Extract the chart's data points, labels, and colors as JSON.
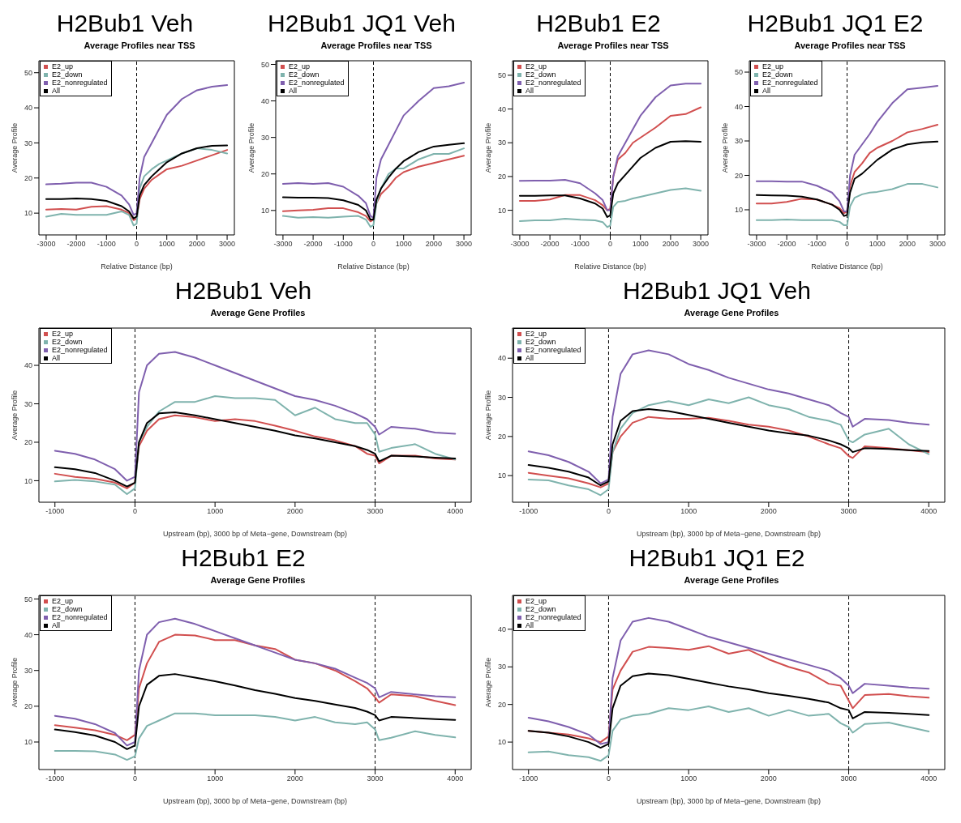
{
  "chart_data": [
    {
      "type": "line",
      "title": "H2Bub1 Veh",
      "subtitle": "Average Profiles near TSS",
      "xlabel": "Relative Distance (bp)",
      "ylabel": "Average Profile",
      "xlim": [
        -3240,
        3240
      ],
      "xticks": [
        -3000,
        -2000,
        -1000,
        0,
        1000,
        2000,
        3000
      ],
      "ylim": [
        3.8,
        53.4
      ],
      "yticks": [
        10,
        20,
        30,
        40,
        50
      ],
      "legend": "top left",
      "ref_lines": [
        {
          "axis": "x",
          "value": 0,
          "color": "#000000",
          "line_style": "dashed"
        }
      ],
      "x": [
        -3000,
        -2500,
        -2000,
        -1500,
        -1000,
        -500,
        -250,
        -100,
        0,
        100,
        250,
        500,
        750,
        1000,
        1500,
        2000,
        2500,
        3000
      ],
      "series": [
        {
          "name": "E2_up",
          "color": "#d14f4f",
          "values": [
            11,
            11.2,
            11,
            11.8,
            12,
            11,
            10,
            8,
            8.5,
            14,
            17,
            19.5,
            21,
            22.5,
            23.5,
            25,
            26.5,
            28
          ]
        },
        {
          "name": "E2_down",
          "color": "#7fb3ad",
          "values": [
            9,
            9.8,
            9.5,
            9.5,
            9.5,
            10.5,
            9.5,
            6.5,
            7,
            17,
            20.5,
            22.5,
            24,
            25,
            27,
            28.5,
            28,
            27
          ]
        },
        {
          "name": "E2_nonregulated",
          "color": "#7f5fae",
          "values": [
            18.2,
            18.4,
            18.7,
            18.7,
            17.5,
            15,
            12.5,
            9.5,
            10,
            20,
            26,
            30,
            34,
            38,
            42.5,
            45,
            46,
            46.5
          ]
        },
        {
          "name": "All",
          "color": "#000000",
          "values": [
            14,
            14,
            14.2,
            14,
            13.5,
            12,
            10.5,
            8.5,
            9,
            15,
            18,
            20.5,
            22.5,
            24.5,
            27,
            28.5,
            29.2,
            29.3
          ]
        }
      ]
    },
    {
      "type": "line",
      "title": "H2Bub1 JQ1 Veh",
      "subtitle": "Average Profiles near TSS",
      "xlabel": "Relative Distance (bp)",
      "ylabel": "Average Profile",
      "xlim": [
        -3240,
        3240
      ],
      "xticks": [
        -3000,
        -2000,
        -1000,
        0,
        1000,
        2000,
        3000
      ],
      "ylim": [
        3.3,
        51
      ],
      "yticks": [
        10,
        20,
        30,
        40,
        50
      ],
      "legend": "top left",
      "ref_lines": [
        {
          "axis": "x",
          "value": 0,
          "color": "#000000",
          "line_style": "dashed"
        }
      ],
      "x": [
        -3000,
        -2500,
        -2000,
        -1500,
        -1000,
        -500,
        -250,
        -100,
        0,
        100,
        250,
        500,
        750,
        1000,
        1500,
        2000,
        2500,
        3000
      ],
      "series": [
        {
          "name": "E2_up",
          "color": "#d14f4f",
          "values": [
            9.8,
            10,
            10.2,
            10.6,
            10.6,
            9.5,
            8.5,
            7,
            7.5,
            12,
            14.5,
            16.5,
            19,
            20.5,
            22,
            23,
            24,
            25
          ]
        },
        {
          "name": "E2_down",
          "color": "#7fb3ad",
          "values": [
            8.5,
            8,
            8.2,
            8,
            8.3,
            8.5,
            7.5,
            5.5,
            6,
            12,
            16,
            20,
            21.5,
            21.5,
            24,
            25.5,
            25.5,
            27
          ]
        },
        {
          "name": "E2_nonregulated",
          "color": "#7f5fae",
          "values": [
            17.3,
            17.5,
            17.3,
            17.5,
            16.5,
            14,
            12,
            8.5,
            8,
            19,
            24,
            28,
            32,
            36,
            40,
            43.5,
            44,
            45
          ]
        },
        {
          "name": "All",
          "color": "#000000",
          "values": [
            13.6,
            13.5,
            13.5,
            13.4,
            12.8,
            11.5,
            10,
            7.5,
            7.5,
            13,
            16,
            19,
            21.5,
            23.5,
            26,
            27.5,
            28,
            28.4
          ]
        }
      ]
    },
    {
      "type": "line",
      "title": "H2Bub1 E2",
      "subtitle": "Average Profiles near TSS",
      "xlabel": "Relative Distance (bp)",
      "ylabel": "Average Profile",
      "xlim": [
        -3240,
        3240
      ],
      "xticks": [
        -3000,
        -2000,
        -1000,
        0,
        1000,
        2000,
        3000
      ],
      "ylim": [
        2.7,
        54.3
      ],
      "yticks": [
        10,
        20,
        30,
        40,
        50
      ],
      "legend": "top left",
      "ref_lines": [
        {
          "axis": "x",
          "value": 0,
          "color": "#000000",
          "line_style": "dashed"
        }
      ],
      "x": [
        -3000,
        -2500,
        -2000,
        -1500,
        -1000,
        -500,
        -250,
        -100,
        0,
        100,
        250,
        500,
        750,
        1000,
        1500,
        2000,
        2500,
        3000
      ],
      "series": [
        {
          "name": "E2_up",
          "color": "#d14f4f",
          "values": [
            12.8,
            12.8,
            13.2,
            14.5,
            14.5,
            13,
            11.5,
            10,
            10.5,
            20,
            25,
            27,
            30,
            31.5,
            34.5,
            38,
            38.5,
            40.5
          ]
        },
        {
          "name": "E2_down",
          "color": "#7fb3ad",
          "values": [
            6.8,
            7,
            7,
            7.5,
            7.2,
            7,
            6.5,
            5,
            5.5,
            11,
            12.5,
            12.8,
            13.5,
            14,
            15,
            16,
            16.5,
            15.8
          ]
        },
        {
          "name": "E2_nonregulated",
          "color": "#7f5fae",
          "values": [
            18.7,
            18.8,
            18.8,
            19,
            18,
            15,
            13,
            10,
            10,
            20,
            26,
            30,
            34,
            38,
            43.5,
            47,
            47.5,
            47.5
          ]
        },
        {
          "name": "All",
          "color": "#000000",
          "values": [
            14.3,
            14.3,
            14.4,
            14.4,
            13.5,
            12,
            10.5,
            8,
            8.5,
            15,
            18,
            20.5,
            23,
            25.5,
            28.5,
            30.3,
            30.5,
            30.3
          ]
        }
      ]
    },
    {
      "type": "line",
      "title": "H2Bub1 JQ1 E2",
      "subtitle": "Average Profiles near TSS",
      "xlabel": "Relative Distance (bp)",
      "ylabel": "Average Profile",
      "xlim": [
        -3240,
        3240
      ],
      "xticks": [
        -3000,
        -2000,
        -1000,
        0,
        1000,
        2000,
        3000
      ],
      "ylim": [
        2.7,
        53.3
      ],
      "yticks": [
        10,
        20,
        30,
        40,
        50
      ],
      "legend": "top left",
      "ref_lines": [
        {
          "axis": "x",
          "value": 0,
          "color": "#000000",
          "line_style": "dashed"
        }
      ],
      "x": [
        -3000,
        -2500,
        -2000,
        -1500,
        -1000,
        -500,
        -250,
        -100,
        0,
        100,
        250,
        500,
        750,
        1000,
        1500,
        2000,
        2500,
        3000
      ],
      "series": [
        {
          "name": "E2_up",
          "color": "#d14f4f",
          "values": [
            11.8,
            11.8,
            12.3,
            13.2,
            13,
            11.5,
            10.5,
            9,
            9.5,
            17,
            21,
            23.5,
            26.5,
            28,
            30,
            32.5,
            33.5,
            34.7
          ]
        },
        {
          "name": "E2_down",
          "color": "#7fb3ad",
          "values": [
            7,
            7,
            7.2,
            7,
            7,
            7,
            6.5,
            5.5,
            5.5,
            11,
            13.5,
            14.5,
            15,
            15.2,
            16,
            17.5,
            17.5,
            16.5
          ]
        },
        {
          "name": "E2_nonregulated",
          "color": "#7f5fae",
          "values": [
            18.3,
            18.3,
            18.2,
            18.2,
            17,
            15,
            12.5,
            9.5,
            9.5,
            20,
            26,
            29,
            32,
            35.5,
            41,
            45,
            45.5,
            46
          ]
        },
        {
          "name": "All",
          "color": "#000000",
          "values": [
            14.3,
            14.2,
            14.1,
            13.8,
            13,
            11.5,
            10,
            8.2,
            8.5,
            15,
            19,
            20.5,
            22.5,
            24.5,
            27.5,
            29,
            29.6,
            29.8
          ]
        }
      ]
    },
    {
      "type": "line",
      "title": "H2Bub1 Veh",
      "subtitle": "Average Gene Profiles",
      "xlabel": "Upstream (bp), 3000 bp of Meta−gene, Downstream (bp)",
      "ylabel": "Average Profile",
      "xlim": [
        -1200,
        4200
      ],
      "xticks": [
        -1000,
        0,
        1000,
        2000,
        3000,
        4000
      ],
      "ylim": [
        4.4,
        49.7
      ],
      "yticks": [
        10,
        20,
        30,
        40
      ],
      "legend": "top left",
      "ref_lines": [
        {
          "axis": "x",
          "value": 0,
          "color": "#000000",
          "line_style": "dashed"
        },
        {
          "axis": "x",
          "value": 3000,
          "color": "#000000",
          "line_style": "dashed"
        }
      ],
      "x": [
        -1000,
        -750,
        -500,
        -250,
        -100,
        0,
        50,
        150,
        300,
        500,
        750,
        1000,
        1250,
        1500,
        1750,
        2000,
        2250,
        2500,
        2750,
        2900,
        3000,
        3050,
        3200,
        3500,
        3750,
        4000
      ],
      "series": [
        {
          "name": "E2_up",
          "color": "#d14f4f",
          "values": [
            11.8,
            11,
            10.5,
            9.5,
            8,
            9.5,
            19,
            23,
            26,
            27,
            26.5,
            25.5,
            26,
            25.5,
            24.3,
            23,
            21.5,
            20.5,
            19,
            17,
            16.5,
            14.5,
            16.5,
            16.5,
            15.8,
            15.5
          ]
        },
        {
          "name": "E2_down",
          "color": "#7fb3ad",
          "values": [
            9.8,
            10.2,
            9.8,
            9,
            6.5,
            8,
            20,
            24,
            28,
            30.5,
            30.5,
            32,
            31.5,
            31.5,
            31,
            27,
            29,
            26,
            25,
            25,
            22,
            17.5,
            18.5,
            19.5,
            17,
            15.5
          ]
        },
        {
          "name": "E2_nonregulated",
          "color": "#7f5fae",
          "values": [
            17.8,
            17,
            15.5,
            13,
            10,
            11,
            33,
            40,
            43,
            43.5,
            42,
            40,
            38,
            36,
            34,
            32,
            31,
            29.5,
            27.5,
            26,
            24,
            22,
            24,
            23.5,
            22.5,
            22.2
          ]
        },
        {
          "name": "All",
          "color": "#000000",
          "values": [
            13.5,
            13,
            12,
            10,
            8.5,
            9.5,
            20,
            25,
            27.5,
            27.8,
            27,
            26,
            25,
            24,
            23,
            21.8,
            21,
            20,
            19,
            18,
            17,
            15,
            16.5,
            16.3,
            16,
            15.8
          ]
        }
      ]
    },
    {
      "type": "line",
      "title": "H2Bub1 JQ1 Veh",
      "subtitle": "Average Gene Profiles",
      "xlabel": "Upstream (bp), 3000 bp of Meta−gene, Downstream (bp)",
      "ylabel": "Average Profile",
      "xlim": [
        -1200,
        4200
      ],
      "xticks": [
        -1000,
        0,
        1000,
        2000,
        3000,
        4000
      ],
      "ylim": [
        3.2,
        47.7
      ],
      "yticks": [
        10,
        20,
        30,
        40
      ],
      "legend": "top left",
      "ref_lines": [
        {
          "axis": "x",
          "value": 0,
          "color": "#000000",
          "line_style": "dashed"
        },
        {
          "axis": "x",
          "value": 3000,
          "color": "#000000",
          "line_style": "dashed"
        }
      ],
      "x": [
        -1000,
        -750,
        -500,
        -250,
        -100,
        0,
        50,
        150,
        300,
        500,
        750,
        1000,
        1250,
        1500,
        1750,
        2000,
        2250,
        2500,
        2750,
        2900,
        3000,
        3050,
        3200,
        3500,
        3750,
        4000
      ],
      "series": [
        {
          "name": "E2_up",
          "color": "#d14f4f",
          "values": [
            10.7,
            10,
            9.3,
            8,
            7,
            8,
            16,
            20,
            23.5,
            25,
            24.5,
            24.5,
            24.8,
            24,
            23,
            22.5,
            21.5,
            20,
            18,
            17,
            15,
            14.5,
            17.5,
            17,
            16.5,
            16
          ]
        },
        {
          "name": "E2_down",
          "color": "#7fb3ad",
          "values": [
            9,
            8.8,
            7.5,
            6.5,
            5,
            6.5,
            16,
            22,
            26,
            28,
            29,
            28,
            29.5,
            28.5,
            30,
            28,
            27,
            25,
            24,
            23,
            19,
            18.5,
            20.5,
            22,
            18,
            15.5
          ]
        },
        {
          "name": "E2_nonregulated",
          "color": "#7f5fae",
          "values": [
            16.2,
            15.2,
            13.5,
            11,
            8,
            9,
            25,
            36,
            41,
            42,
            41,
            38.5,
            37,
            35,
            33.5,
            32,
            31,
            29.5,
            28,
            26,
            25,
            22.5,
            24.5,
            24.2,
            23.5,
            23
          ]
        },
        {
          "name": "All",
          "color": "#000000",
          "values": [
            12.7,
            12,
            11,
            9.5,
            7.5,
            8.5,
            18,
            24,
            26.5,
            27,
            26.5,
            25.5,
            24.5,
            23.5,
            22.5,
            21.5,
            20.8,
            20.2,
            19,
            18,
            17,
            16,
            17,
            16.8,
            16.5,
            16.3
          ]
        }
      ]
    },
    {
      "type": "line",
      "title": "H2Bub1 E2",
      "subtitle": "Average Gene Profiles",
      "xlabel": "Upstream (bp), 3000 bp of Meta−gene, Downstream (bp)",
      "ylabel": "Average Profile",
      "xlim": [
        -1200,
        4200
      ],
      "xticks": [
        -1000,
        0,
        1000,
        2000,
        3000,
        4000
      ],
      "ylim": [
        2.3,
        51
      ],
      "yticks": [
        10,
        20,
        30,
        40,
        50
      ],
      "legend": "top left",
      "ref_lines": [
        {
          "axis": "x",
          "value": 0,
          "color": "#000000",
          "line_style": "dashed"
        },
        {
          "axis": "x",
          "value": 3000,
          "color": "#000000",
          "line_style": "dashed"
        }
      ],
      "x": [
        -1000,
        -750,
        -500,
        -250,
        -100,
        0,
        50,
        150,
        300,
        500,
        750,
        1000,
        1250,
        1500,
        1750,
        2000,
        2250,
        2500,
        2750,
        2900,
        3000,
        3050,
        3200,
        3500,
        3750,
        4000
      ],
      "series": [
        {
          "name": "E2_up",
          "color": "#d14f4f",
          "values": [
            14.7,
            14,
            13.3,
            12,
            10.5,
            12,
            25,
            32,
            38,
            40,
            39.8,
            38.5,
            38.5,
            37,
            36,
            33,
            32,
            30,
            27,
            25,
            22.5,
            21,
            23.3,
            22.8,
            21.5,
            20.3
          ]
        },
        {
          "name": "E2_down",
          "color": "#7fb3ad",
          "values": [
            7.5,
            7.5,
            7.4,
            6.5,
            5,
            6,
            11,
            14.5,
            16,
            18,
            18,
            17.5,
            17.5,
            17.5,
            17,
            16,
            17,
            15.5,
            15,
            15.5,
            13.5,
            10.5,
            11.2,
            13,
            12,
            11.3
          ]
        },
        {
          "name": "E2_nonregulated",
          "color": "#7f5fae",
          "values": [
            17.3,
            16.5,
            15,
            12.5,
            9,
            10,
            30,
            40,
            43.5,
            44.5,
            43,
            41,
            39,
            37,
            35,
            33,
            32,
            30.5,
            28,
            26.5,
            25,
            22.5,
            24,
            23.3,
            22.8,
            22.5
          ]
        },
        {
          "name": "All",
          "color": "#000000",
          "values": [
            13.5,
            12.8,
            11.8,
            10,
            8,
            9,
            20,
            26,
            28.5,
            29,
            28,
            27,
            25.8,
            24.5,
            23.5,
            22.3,
            21.5,
            20.5,
            19.5,
            18.5,
            17.5,
            16,
            17,
            16.7,
            16.4,
            16.2
          ]
        }
      ]
    },
    {
      "type": "line",
      "title": "H2Bub1 JQ1 E2",
      "subtitle": "Average Gene Profiles",
      "xlabel": "Upstream (bp), 3000 bp of Meta−gene, Downstream (bp)",
      "ylabel": "Average Profile",
      "xlim": [
        -1200,
        4200
      ],
      "xticks": [
        -1000,
        0,
        1000,
        2000,
        3000,
        4000
      ],
      "ylim": [
        2.7,
        49
      ],
      "yticks": [
        10,
        20,
        30,
        40
      ],
      "legend": "top left",
      "ref_lines": [
        {
          "axis": "x",
          "value": 0,
          "color": "#000000",
          "line_style": "dashed"
        },
        {
          "axis": "x",
          "value": 3000,
          "color": "#000000",
          "line_style": "dashed"
        }
      ],
      "x": [
        -1000,
        -750,
        -500,
        -250,
        -100,
        0,
        50,
        150,
        300,
        500,
        750,
        1000,
        1250,
        1500,
        1750,
        2000,
        2250,
        2500,
        2750,
        2900,
        3000,
        3050,
        3200,
        3500,
        3750,
        4000
      ],
      "series": [
        {
          "name": "E2_up",
          "color": "#d14f4f",
          "values": [
            13,
            12.5,
            12,
            11,
            10,
            11.5,
            24,
            29,
            34,
            35.3,
            35,
            34.5,
            35.5,
            33.5,
            34.5,
            32,
            30,
            28.5,
            25.5,
            25,
            21,
            19,
            22.5,
            22.8,
            22.2,
            21.8
          ]
        },
        {
          "name": "E2_down",
          "color": "#7fb3ad",
          "values": [
            7.3,
            7.5,
            6.5,
            6,
            5,
            6.5,
            13,
            16,
            17,
            17.5,
            19,
            18.5,
            19.5,
            18,
            19,
            17,
            18.5,
            17,
            17.5,
            15,
            14,
            12.5,
            14.8,
            15.2,
            14,
            12.8
          ]
        },
        {
          "name": "E2_nonregulated",
          "color": "#7f5fae",
          "values": [
            16.5,
            15.5,
            14,
            12,
            9.5,
            10,
            27,
            37,
            42,
            43,
            42,
            40,
            38,
            36.5,
            35,
            33.5,
            32,
            30.5,
            29,
            27,
            25,
            23,
            25.5,
            25,
            24.5,
            24.2
          ]
        },
        {
          "name": "All",
          "color": "#000000",
          "values": [
            13,
            12.5,
            11.5,
            10,
            8.5,
            9.5,
            19,
            25,
            27.5,
            28.2,
            27.8,
            26.8,
            25.8,
            24.8,
            24,
            23,
            22.3,
            21.5,
            20.5,
            19,
            18.5,
            16.3,
            18,
            17.8,
            17.5,
            17.2
          ]
        }
      ]
    }
  ]
}
